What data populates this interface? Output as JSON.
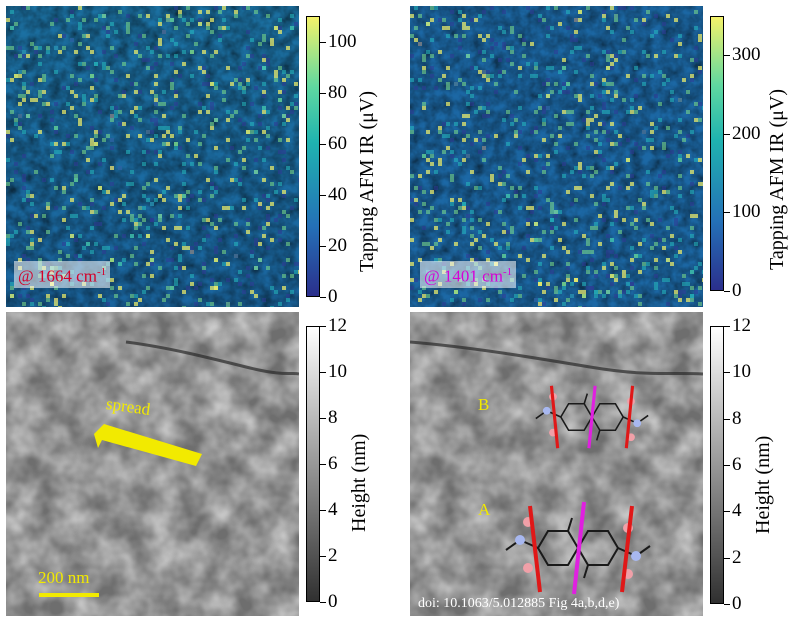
{
  "panels": {
    "ir1664": {
      "label_prefix": "@ ",
      "wavenumber": "1664",
      "unit": "cm",
      "unit_exp": "-1"
    },
    "ir1401": {
      "label_prefix": "@ ",
      "wavenumber": "1401",
      "unit": "cm",
      "unit_exp": "-1"
    },
    "height_left": {
      "arrow_label": "spread",
      "scalebar_label": "200 nm"
    },
    "height_right": {
      "label_B": "B",
      "label_A": "A",
      "doi": "doi: 10.1063/5.012885 Fig 4a,b,d,e)"
    }
  },
  "colorbars": {
    "ir1664": {
      "label": "Tapping AFM IR (μV)",
      "ticks": [
        "100",
        "80",
        "60",
        "40",
        "20",
        "0"
      ],
      "range": [
        0,
        110
      ]
    },
    "ir1401": {
      "label": "Tapping AFM IR (μV)",
      "ticks": [
        "300",
        "200",
        "100",
        "0"
      ],
      "range": [
        0,
        350
      ]
    },
    "height_left": {
      "label": "Height (nm)",
      "ticks": [
        "12",
        "10",
        "8",
        "6",
        "4",
        "2",
        "0"
      ],
      "range": [
        0,
        12
      ]
    },
    "height_right": {
      "label": "Height (nm)",
      "ticks": [
        "12",
        "10",
        "8",
        "6",
        "4",
        "2",
        "0"
      ],
      "range": [
        0,
        12
      ]
    }
  },
  "colors": {
    "ir_low": "#2b2f8c",
    "ir_mid": "#1fb3b0",
    "ir_high": "#f4f26a",
    "label_red": "#d4002a",
    "label_magenta": "#d600d6",
    "annotation_yellow": "#f2ea00"
  }
}
